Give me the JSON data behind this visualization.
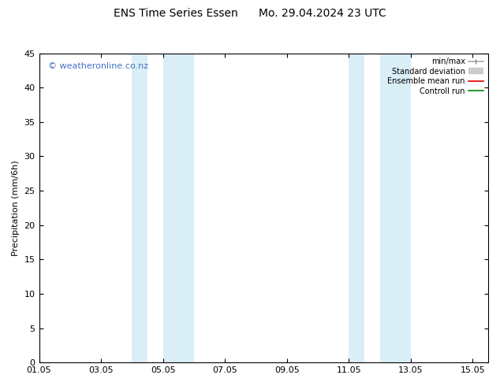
{
  "title": "ENS Time Series Essen      Mo. 29.04.2024 23 UTC",
  "ylabel": "Precipitation (mm/6h)",
  "ylim": [
    0,
    45
  ],
  "yticks": [
    0,
    5,
    10,
    15,
    20,
    25,
    30,
    35,
    40,
    45
  ],
  "xlim": [
    1.0,
    15.5
  ],
  "xtick_positions": [
    1,
    3,
    5,
    7,
    9,
    11,
    13,
    15
  ],
  "xtick_labels": [
    "01.05",
    "03.05",
    "05.05",
    "07.05",
    "09.05",
    "11.05",
    "13.05",
    "15.05"
  ],
  "shaded_bands": [
    {
      "xstart": 4.0,
      "xend": 4.5
    },
    {
      "xstart": 5.0,
      "xend": 6.0
    },
    {
      "xstart": 11.0,
      "xend": 11.5
    },
    {
      "xstart": 12.0,
      "xend": 13.0
    }
  ],
  "shade_color": "#daeef8",
  "watermark": "© weatheronline.co.nz",
  "watermark_color": "#4472c4",
  "bg_color": "#ffffff",
  "title_fontsize": 10,
  "axis_fontsize": 8,
  "watermark_fontsize": 8
}
